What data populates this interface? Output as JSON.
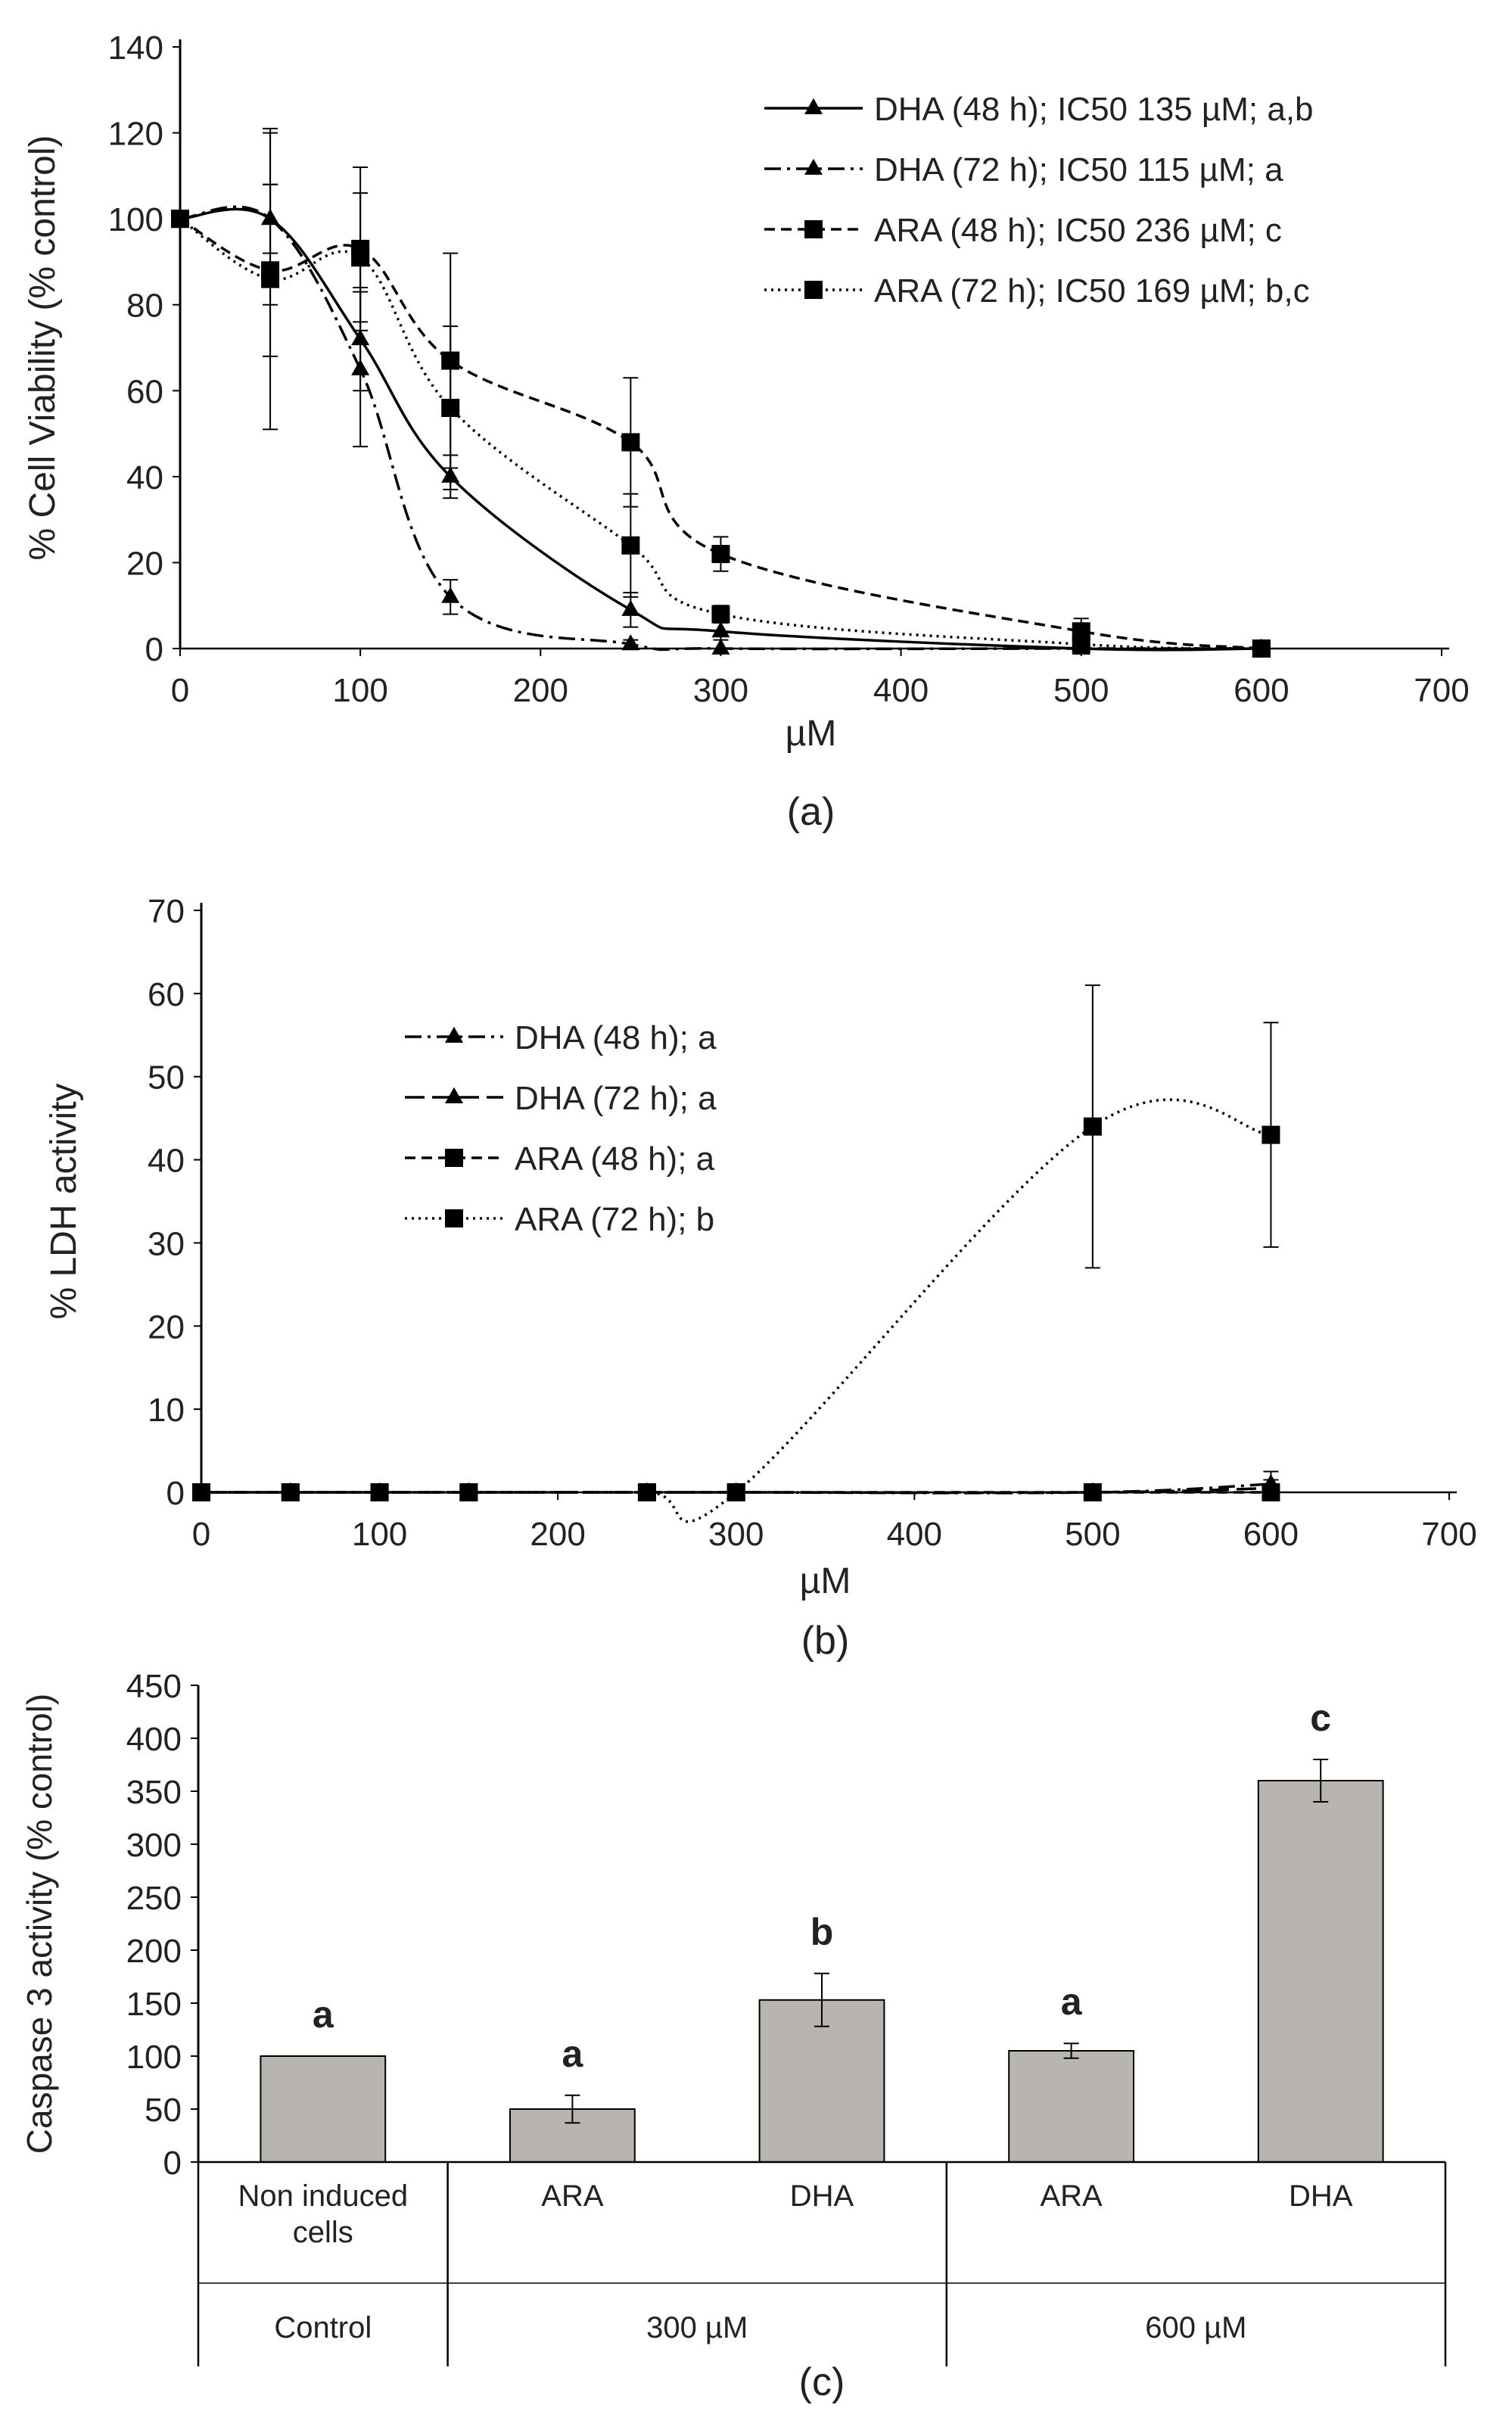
{
  "chart_data": [
    {
      "id": "a",
      "type": "line",
      "panel_label": "(a)",
      "xlabel": "µM",
      "ylabel": "% Cell Viability (% control)",
      "xlim": [
        0,
        700
      ],
      "ylim": [
        0,
        140
      ],
      "xticks": [
        0,
        100,
        200,
        300,
        400,
        500,
        600,
        700
      ],
      "yticks": [
        0,
        20,
        40,
        60,
        80,
        100,
        120,
        140
      ],
      "grid": false,
      "legend_position": "top-right",
      "series": [
        {
          "name": "DHA (48 h); IC50 135 µM; a,b",
          "marker": "triangle",
          "dash": "solid",
          "x": [
            0,
            50,
            100,
            150,
            250,
            300,
            500,
            600
          ],
          "y": [
            100,
            100,
            72,
            40,
            9,
            4,
            0,
            0
          ],
          "err": [
            0,
            8,
            12,
            5,
            4,
            2,
            0,
            0
          ]
        },
        {
          "name": "DHA (72 h); IC50 115 µM; a",
          "marker": "triangle",
          "dash": "dashdot",
          "x": [
            0,
            50,
            100,
            150,
            250,
            300,
            500,
            600
          ],
          "y": [
            100,
            100,
            65,
            12,
            1,
            0,
            0,
            0
          ],
          "err": [
            0,
            20,
            18,
            4,
            1,
            0,
            0,
            0
          ]
        },
        {
          "name": "ARA (48 h); IC50 236 µM; c",
          "marker": "square",
          "dash": "dashed",
          "x": [
            0,
            50,
            100,
            150,
            250,
            300,
            500,
            600
          ],
          "y": [
            100,
            88,
            93,
            67,
            48,
            22,
            4,
            0
          ],
          "err": [
            0,
            20,
            19,
            25,
            15,
            4,
            3,
            0
          ]
        },
        {
          "name": "ARA (72 h); IC50 169 µM; b,c",
          "marker": "square",
          "dash": "dotted",
          "x": [
            0,
            50,
            100,
            150,
            250,
            300,
            500,
            600
          ],
          "y": [
            100,
            86,
            91,
            56,
            24,
            8,
            1,
            0
          ],
          "err": [
            0,
            35,
            15,
            19,
            12,
            2,
            1,
            0
          ]
        }
      ]
    },
    {
      "id": "b",
      "type": "line",
      "panel_label": "(b)",
      "xlabel": "µM",
      "ylabel": "% LDH activity",
      "xlim": [
        0,
        700
      ],
      "ylim": [
        0,
        70
      ],
      "xticks": [
        0,
        100,
        200,
        300,
        400,
        500,
        600,
        700
      ],
      "yticks": [
        0,
        10,
        20,
        30,
        40,
        50,
        60,
        70
      ],
      "grid": false,
      "legend_position": "top-left",
      "series": [
        {
          "name": "DHA (48 h); a",
          "marker": "triangle",
          "dash": "dashdot",
          "x": [
            0,
            50,
            100,
            150,
            250,
            300,
            500,
            600
          ],
          "y": [
            0,
            0,
            0,
            0,
            0,
            0,
            0,
            1
          ],
          "err": [
            0,
            0,
            0,
            0,
            0,
            0,
            0,
            1.5
          ]
        },
        {
          "name": "DHA (72 h); a",
          "marker": "triangle",
          "dash": "longdash",
          "x": [
            0,
            50,
            100,
            150,
            250,
            300,
            500,
            600
          ],
          "y": [
            0,
            0,
            0,
            0,
            0,
            0,
            0,
            0.5
          ],
          "err": [
            0,
            0,
            0,
            0,
            0,
            0,
            0,
            1
          ]
        },
        {
          "name": "ARA (48 h); a",
          "marker": "square",
          "dash": "dashed",
          "x": [
            0,
            50,
            100,
            150,
            250,
            300,
            500,
            600
          ],
          "y": [
            0,
            0,
            0,
            0,
            0,
            0,
            0,
            0
          ],
          "err": [
            0,
            0,
            0,
            0,
            0,
            0,
            0,
            0
          ]
        },
        {
          "name": "ARA (72 h); b",
          "marker": "square",
          "dash": "dotted",
          "x": [
            0,
            50,
            100,
            150,
            250,
            300,
            500,
            600
          ],
          "y": [
            0,
            0,
            0,
            0,
            0,
            0,
            44,
            43
          ],
          "err": [
            0,
            0,
            0,
            0,
            0,
            0,
            17,
            13.5
          ]
        }
      ]
    },
    {
      "id": "c",
      "type": "bar",
      "panel_label": "(c)",
      "ylabel": "Caspase 3 activity (% control)",
      "ylim": [
        0,
        450
      ],
      "yticks": [
        0,
        50,
        100,
        150,
        200,
        250,
        300,
        350,
        400,
        450
      ],
      "grid": false,
      "bar_color": "#b8b4b0",
      "categories": [
        "Non induced cells",
        "ARA",
        "DHA",
        "ARA",
        "DHA"
      ],
      "groups": [
        {
          "label": "Control",
          "count": 1
        },
        {
          "label": "300 µM",
          "count": 2
        },
        {
          "label": "600 µM",
          "count": 2
        }
      ],
      "values": [
        100,
        50,
        153,
        105,
        360
      ],
      "err": [
        0,
        13,
        25,
        7,
        20
      ],
      "letters": [
        "a",
        "a",
        "b",
        "a",
        "c"
      ]
    }
  ]
}
